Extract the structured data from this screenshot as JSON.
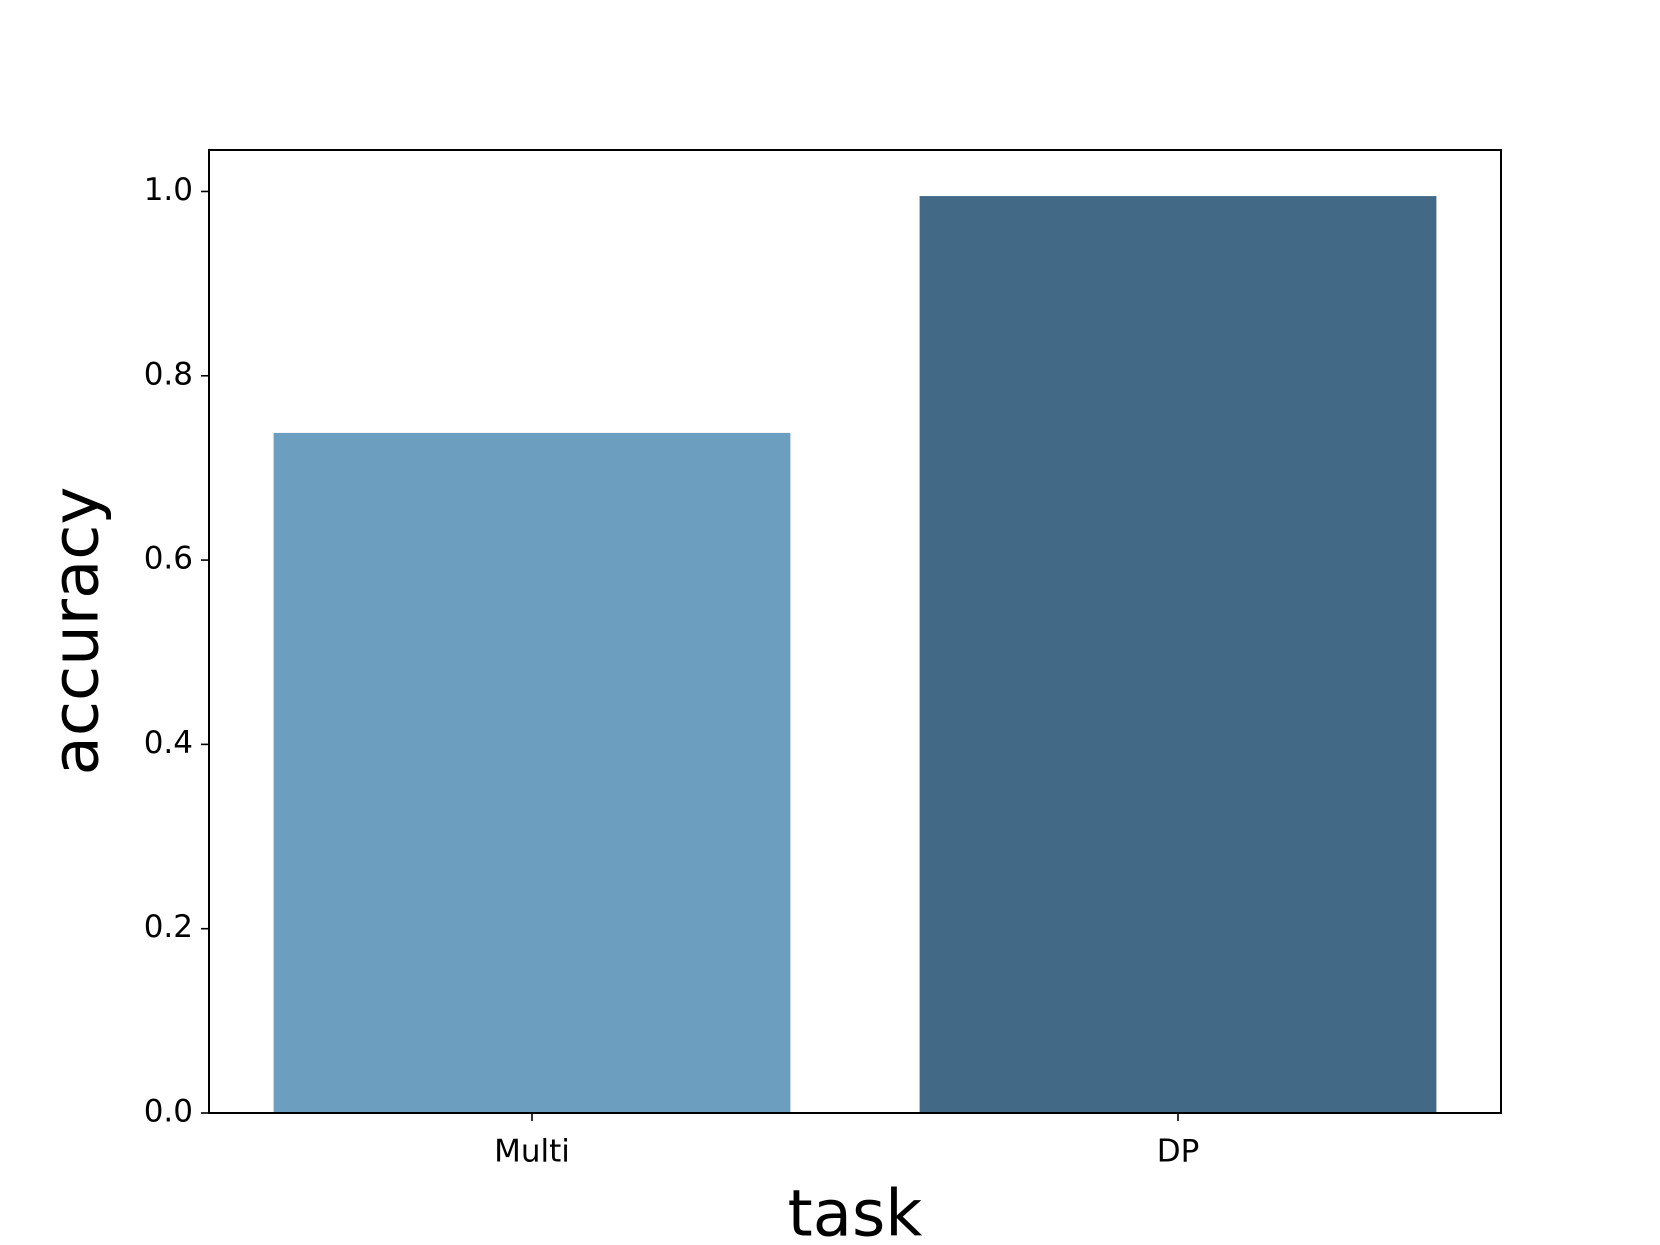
{
  "chart_data": {
    "type": "bar",
    "xlabel": "task",
    "ylabel": "accuracy",
    "categories": [
      "Multi",
      "DP"
    ],
    "values": [
      0.738,
      0.995
    ],
    "colors": [
      "#6b9ebf",
      "#426985"
    ],
    "ylim": [
      0,
      1.045
    ],
    "yticks": [
      {
        "value": 0,
        "label": "0.0"
      },
      0.2,
      0.4,
      0.6,
      0.8,
      {
        "value": 1,
        "label": "1.0"
      }
    ],
    "grid": false
  }
}
